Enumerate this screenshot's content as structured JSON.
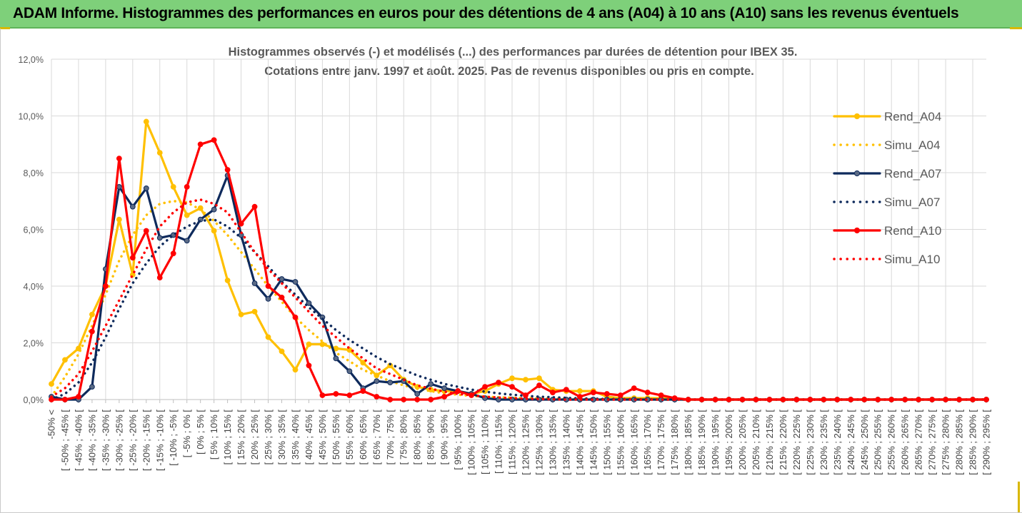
{
  "banner": {
    "title": "ADAM Informe. Histogrammes des performances en euros pour des détentions de 4 ans (A04) à 10 ans (A10) sans les revenus éventuels"
  },
  "colors": {
    "banner_bg": "#7ed07a",
    "A04": "#ffc000",
    "A07": "#0e2a5c",
    "A10": "#ff0000",
    "grid": "#d9d9d9"
  },
  "chart_data": {
    "type": "line",
    "title": "Histogrammes observés (-) et modélisés (...) des performances par durées de détention pour IBEX 35.",
    "subtitle": "Cotations entre janv. 1997 et août. 2025. Pas de revenus disponibles ou pris en compte.",
    "xlabel": "",
    "ylabel": "",
    "ylim": [
      0,
      12
    ],
    "y_ticks": [
      "0,0%",
      "2,0%",
      "4,0%",
      "6,0%",
      "8,0%",
      "10,0%",
      "12,0%"
    ],
    "grid": true,
    "legend_position": "right",
    "categories": [
      "-50% <",
      "[ -50% ; -45% [",
      "[ -45% ; -40% [",
      "[ -40% ; -35% [",
      "[ -35% ; -30% [",
      "[ -30% ; -25% [",
      "[ -25% ; -20% [",
      "[ -20% ; -15% [",
      "[ -15% ; -10% [",
      "[ -10% ; -5% [",
      "[ -5% ; 0% [",
      "[ 0% ; 5% [",
      "[ 5% ; 10% [",
      "[ 10% ; 15% [",
      "[ 15% ; 20% [",
      "[ 20% ; 25% [",
      "[ 25% ; 30% [",
      "[ 30% ; 35% [",
      "[ 35% ; 40% [",
      "[ 40% ; 45% [",
      "[ 45% ; 50% [",
      "[ 50% ; 55% [",
      "[ 55% ; 60% [",
      "[ 60% ; 65% [",
      "[ 65% ; 70% [",
      "[ 70% ; 75% [",
      "[ 75% ; 80% [",
      "[ 80% ; 85% [",
      "[ 85% ; 90% [",
      "[ 90% ; 95% [",
      "[ 95% ; 100% [",
      "[ 100% ; 105% [",
      "[ 105% ; 110% [",
      "[ 110% ; 115% [",
      "[ 115% ; 120% [",
      "[ 120% ; 125% [",
      "[ 125% ; 130% [",
      "[ 130% ; 135% [",
      "[ 135% ; 140% [",
      "[ 140% ; 145% [",
      "[ 145% ; 150% [",
      "[ 150% ; 155% [",
      "[ 155% ; 160% [",
      "[ 160% ; 165% [",
      "[ 165% ; 170% [",
      "[ 170% ; 175% [",
      "[ 175% ; 180% [",
      "[ 180% ; 185% [",
      "[ 185% ; 190% [",
      "[ 190% ; 195% [",
      "[ 195% ; 200% [",
      "[ 200% ; 205% [",
      "[ 205% ; 210% [",
      "[ 210% ; 215% [",
      "[ 215% ; 220% [",
      "[ 220% ; 225% [",
      "[ 225% ; 230% [",
      "[ 230% ; 235% [",
      "[ 235% ; 240% [",
      "[ 240% ; 245% [",
      "[ 245% ; 250% [",
      "[ 250% ; 255% [",
      "[ 255% ; 260% [",
      "[ 260% ; 265% [",
      "[ 265% ; 270% [",
      "[ 270% ; 275% [",
      "[ 275% ; 280% [",
      "[ 280% ; 285% [",
      "[ 285% ; 290% [",
      "[ 290% ; 295% ["
    ],
    "series": [
      {
        "name": "Rend_A04",
        "style": "solid",
        "color": "#ffc000",
        "marker": true,
        "values": [
          0.55,
          1.4,
          1.8,
          3.0,
          4.0,
          6.35,
          4.4,
          9.8,
          8.7,
          7.5,
          6.5,
          6.75,
          5.95,
          4.2,
          3.0,
          3.1,
          2.2,
          1.7,
          1.05,
          1.95,
          1.95,
          1.8,
          1.75,
          1.3,
          0.85,
          1.2,
          0.7,
          0.45,
          0.35,
          0.3,
          0.3,
          0.2,
          0.3,
          0.55,
          0.75,
          0.7,
          0.75,
          0.35,
          0.3,
          0.3,
          0.3,
          0.1,
          0.05,
          0.05,
          0.05,
          0.05,
          0.02,
          0,
          0,
          0,
          0,
          0,
          0,
          0,
          0,
          0,
          0,
          0,
          0,
          0,
          0,
          0,
          0,
          0,
          0,
          0,
          0,
          0,
          0,
          0
        ]
      },
      {
        "name": "Simu_A04",
        "style": "dotted",
        "color": "#ffc000",
        "marker": false,
        "values": [
          0.1,
          0.8,
          1.6,
          2.6,
          3.7,
          4.9,
          5.8,
          6.5,
          6.9,
          7.0,
          6.95,
          6.7,
          6.3,
          5.8,
          5.2,
          4.6,
          4.0,
          3.45,
          2.9,
          2.45,
          2.05,
          1.65,
          1.35,
          1.05,
          0.85,
          0.65,
          0.5,
          0.38,
          0.3,
          0.22,
          0.17,
          0.13,
          0.1,
          0.08,
          0.06,
          0.05,
          0.04,
          0.03,
          0.02,
          0.02,
          0.01,
          0.01,
          0.01,
          0.0,
          0,
          0,
          0,
          0,
          0,
          0,
          0,
          0,
          0,
          0,
          0,
          0,
          0,
          0,
          0,
          0,
          0,
          0,
          0,
          0,
          0,
          0,
          0,
          0,
          0,
          0
        ]
      },
      {
        "name": "Rend_A07",
        "style": "solid",
        "color": "#0e2a5c",
        "marker": true,
        "values": [
          0.1,
          0.0,
          0.0,
          0.45,
          4.6,
          7.5,
          6.8,
          7.45,
          5.7,
          5.8,
          5.6,
          6.35,
          6.7,
          7.9,
          5.8,
          4.1,
          3.55,
          4.25,
          4.15,
          3.4,
          2.9,
          1.45,
          1.0,
          0.4,
          0.65,
          0.6,
          0.65,
          0.2,
          0.55,
          0.4,
          0.3,
          0.2,
          0.05,
          0.0,
          0.0,
          0.0,
          0.0,
          0.0,
          0.0,
          0.0,
          0.0,
          0.0,
          0.0,
          0,
          0,
          0,
          0,
          0,
          0,
          0,
          0,
          0,
          0,
          0,
          0,
          0,
          0,
          0,
          0,
          0,
          0,
          0,
          0,
          0,
          0,
          0,
          0,
          0,
          0,
          0
        ]
      },
      {
        "name": "Simu_A07",
        "style": "dotted",
        "color": "#0e2a5c",
        "marker": false,
        "values": [
          0.0,
          0.2,
          0.6,
          1.3,
          2.2,
          3.2,
          4.1,
          4.8,
          5.4,
          5.8,
          6.1,
          6.3,
          6.35,
          6.1,
          5.7,
          5.2,
          4.7,
          4.15,
          3.7,
          3.25,
          2.85,
          2.45,
          2.1,
          1.8,
          1.5,
          1.25,
          1.05,
          0.85,
          0.7,
          0.55,
          0.45,
          0.35,
          0.28,
          0.22,
          0.17,
          0.13,
          0.1,
          0.08,
          0.06,
          0.04,
          0.03,
          0.02,
          0.02,
          0.01,
          0.01,
          0,
          0,
          0,
          0,
          0,
          0,
          0,
          0,
          0,
          0,
          0,
          0,
          0,
          0,
          0,
          0,
          0,
          0,
          0,
          0,
          0,
          0,
          0,
          0,
          0
        ]
      },
      {
        "name": "Rend_A10",
        "style": "solid",
        "color": "#ff0000",
        "marker": true,
        "values": [
          0.0,
          0.0,
          0.1,
          2.4,
          4.0,
          8.5,
          5.0,
          5.95,
          4.3,
          5.15,
          7.5,
          9.0,
          9.15,
          8.1,
          6.2,
          6.8,
          4.0,
          3.6,
          2.9,
          1.2,
          0.15,
          0.2,
          0.15,
          0.3,
          0.1,
          0.0,
          0.0,
          0.0,
          0.0,
          0.1,
          0.3,
          0.15,
          0.45,
          0.6,
          0.45,
          0.15,
          0.5,
          0.25,
          0.35,
          0.1,
          0.25,
          0.2,
          0.15,
          0.4,
          0.25,
          0.15,
          0.05,
          0,
          0,
          0,
          0,
          0,
          0,
          0,
          0,
          0,
          0,
          0,
          0,
          0,
          0,
          0,
          0,
          0,
          0,
          0,
          0,
          0,
          0,
          0
        ]
      },
      {
        "name": "Simu_A10",
        "style": "dotted",
        "color": "#ff0000",
        "marker": false,
        "values": [
          0.1,
          0.4,
          0.9,
          1.7,
          2.6,
          3.5,
          4.4,
          5.3,
          6.1,
          6.6,
          6.95,
          7.05,
          6.9,
          6.6,
          5.9,
          5.2,
          4.6,
          4.1,
          3.6,
          3.1,
          2.6,
          2.2,
          1.8,
          1.45,
          1.1,
          0.9,
          0.7,
          0.5,
          0.38,
          0.28,
          0.2,
          0.15,
          0.1,
          0.07,
          0.05,
          0.03,
          0.02,
          0.01,
          0.0,
          0,
          0,
          0,
          0,
          0,
          0,
          0,
          0,
          0,
          0,
          0,
          0,
          0,
          0,
          0,
          0,
          0,
          0,
          0,
          0,
          0,
          0,
          0,
          0,
          0,
          0,
          0,
          0,
          0,
          0,
          0
        ]
      }
    ]
  }
}
